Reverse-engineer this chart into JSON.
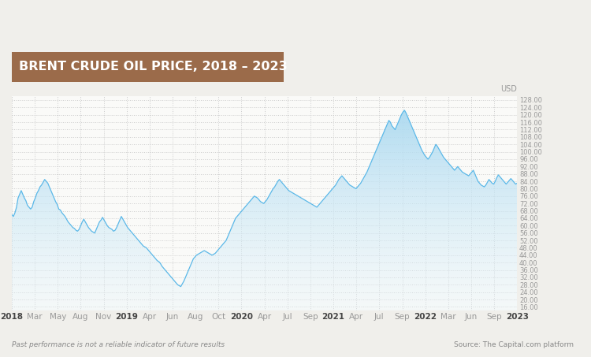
{
  "title": "BRENT CRUDE OIL PRICE, 2018 – 2023",
  "title_bg_color": "#9B6B4A",
  "title_text_color": "#FFFFFF",
  "bg_color": "#F0EFEB",
  "plot_bg_color": "#FAFAF8",
  "line_color": "#5BB8E8",
  "fill_color_top": "#A8D8F0",
  "fill_color_bottom": "#EBF6FC",
  "ylabel": "USD",
  "footer_left": "Past performance is not a reliable indicator of future results",
  "footer_right": "Source: The Capital.com platform",
  "yticks": [
    16,
    20,
    24,
    28,
    32,
    36,
    40,
    44,
    48,
    52,
    56,
    60,
    64,
    68,
    72,
    76,
    80,
    84,
    88,
    92,
    96,
    100,
    104,
    108,
    112,
    116,
    120,
    124,
    128
  ],
  "ylim": [
    14,
    130
  ],
  "xtick_labels": [
    "2018",
    "Mar",
    "May",
    "Aug",
    "Nov",
    "2019",
    "Apr",
    "Jun",
    "Aug",
    "Oct",
    "2020",
    "Apr",
    "Jul",
    "Sep",
    "2021",
    "Apr",
    "Jul",
    "Sep",
    "2022",
    "Mar",
    "Jun",
    "Sep",
    "2023"
  ],
  "xtick_bold": [
    "2018",
    "2019",
    "2020",
    "2021",
    "2022",
    "2023"
  ],
  "prices": [
    66.0,
    65.0,
    67.0,
    70.0,
    75.0,
    77.0,
    79.0,
    77.0,
    75.0,
    73.5,
    71.0,
    70.0,
    69.0,
    70.0,
    73.0,
    75.0,
    77.5,
    79.0,
    81.0,
    82.0,
    83.5,
    85.0,
    84.0,
    83.0,
    81.0,
    79.0,
    77.0,
    75.0,
    73.0,
    71.5,
    69.0,
    68.5,
    67.0,
    66.0,
    65.0,
    63.5,
    62.0,
    61.0,
    60.0,
    59.0,
    58.5,
    57.5,
    57.0,
    58.0,
    60.0,
    62.0,
    63.5,
    62.0,
    60.5,
    59.0,
    58.0,
    57.0,
    56.5,
    56.0,
    58.0,
    60.0,
    62.0,
    63.0,
    64.5,
    63.0,
    61.5,
    60.0,
    59.0,
    58.5,
    58.0,
    57.0,
    57.5,
    59.0,
    61.0,
    63.0,
    65.0,
    63.5,
    62.0,
    60.5,
    59.0,
    58.0,
    57.0,
    56.0,
    55.0,
    54.0,
    53.0,
    52.0,
    51.0,
    50.0,
    49.0,
    48.5,
    48.0,
    47.0,
    46.0,
    45.0,
    44.0,
    43.0,
    42.0,
    41.0,
    40.5,
    39.5,
    38.0,
    37.0,
    36.0,
    35.0,
    34.0,
    33.0,
    32.0,
    31.0,
    30.0,
    29.0,
    28.0,
    27.5,
    27.0,
    28.5,
    30.0,
    32.0,
    34.0,
    36.0,
    38.0,
    40.0,
    42.0,
    43.0,
    44.0,
    44.5,
    45.0,
    45.5,
    46.0,
    46.5,
    46.0,
    45.5,
    45.0,
    44.5,
    44.0,
    44.5,
    45.0,
    46.0,
    47.0,
    48.0,
    49.0,
    50.0,
    51.0,
    52.0,
    54.0,
    56.0,
    58.0,
    60.0,
    62.0,
    64.0,
    65.0,
    66.0,
    67.0,
    68.0,
    69.0,
    70.0,
    71.0,
    72.0,
    73.0,
    74.0,
    75.0,
    76.0,
    75.5,
    75.0,
    74.0,
    73.0,
    72.5,
    72.0,
    73.0,
    74.0,
    75.5,
    77.0,
    78.5,
    80.0,
    81.0,
    82.5,
    84.0,
    85.0,
    84.0,
    83.0,
    82.0,
    81.0,
    80.0,
    79.0,
    78.5,
    78.0,
    77.5,
    77.0,
    76.5,
    76.0,
    75.5,
    75.0,
    74.5,
    74.0,
    73.5,
    73.0,
    72.5,
    72.0,
    71.5,
    71.0,
    70.5,
    70.0,
    71.0,
    72.0,
    73.0,
    74.0,
    75.0,
    76.0,
    77.0,
    78.0,
    79.0,
    80.0,
    81.0,
    82.0,
    83.5,
    85.0,
    86.0,
    87.0,
    86.0,
    85.0,
    84.0,
    83.0,
    82.0,
    81.5,
    81.0,
    80.5,
    80.0,
    81.0,
    82.0,
    83.0,
    84.5,
    86.0,
    87.5,
    89.0,
    91.0,
    93.0,
    95.0,
    97.0,
    99.0,
    101.0,
    103.0,
    105.0,
    107.0,
    109.0,
    111.0,
    113.0,
    115.0,
    117.0,
    116.0,
    114.0,
    113.0,
    112.0,
    114.0,
    116.0,
    118.0,
    120.0,
    121.5,
    122.5,
    121.0,
    119.0,
    117.0,
    115.0,
    113.0,
    111.0,
    109.0,
    107.0,
    105.0,
    103.0,
    101.0,
    99.5,
    98.0,
    97.0,
    96.0,
    97.0,
    98.5,
    100.0,
    102.0,
    104.0,
    103.0,
    101.5,
    100.0,
    98.5,
    97.0,
    96.0,
    95.0,
    94.0,
    93.0,
    92.0,
    91.0,
    90.0,
    91.0,
    92.0,
    91.0,
    90.0,
    89.0,
    88.5,
    88.0,
    87.5,
    87.0,
    88.0,
    89.0,
    90.0,
    88.0,
    86.0,
    84.0,
    83.0,
    82.0,
    81.5,
    81.0,
    82.0,
    83.5,
    85.0,
    84.0,
    83.0,
    82.5,
    84.0,
    86.0,
    87.5,
    86.5,
    85.5,
    84.5,
    83.5,
    82.5,
    83.5,
    84.5,
    85.5,
    84.5,
    83.5,
    82.5,
    83.0
  ]
}
